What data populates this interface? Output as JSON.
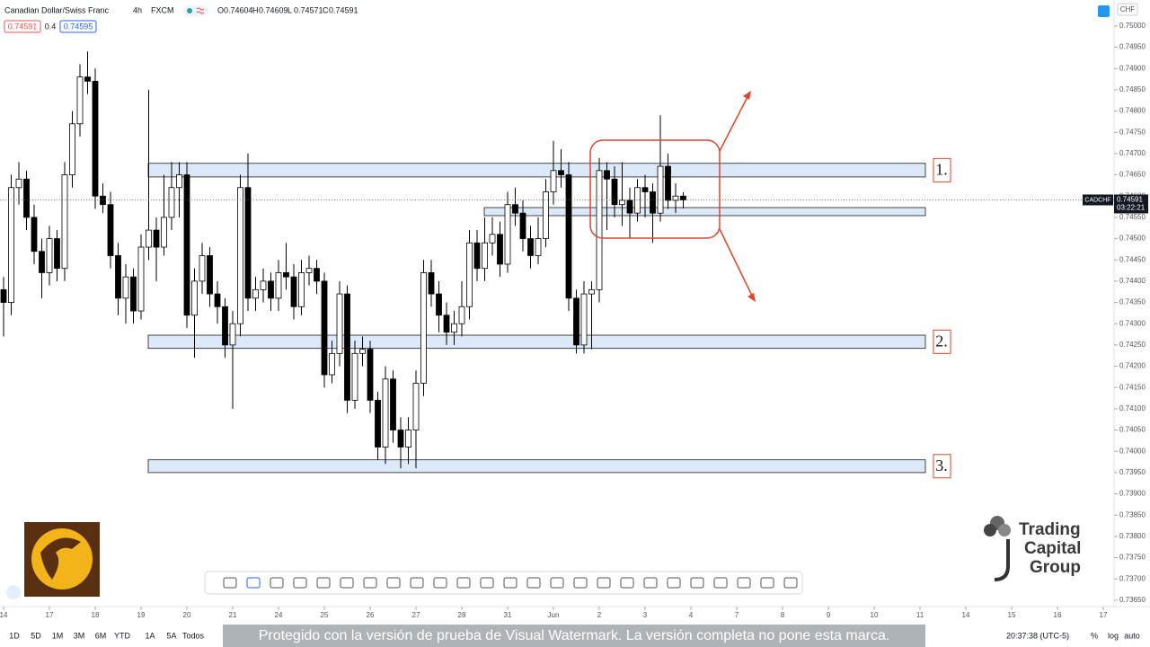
{
  "chart_data": {
    "type": "candlestick",
    "header": {
      "symbol": "Canadian Dollar/Swiss Franc",
      "interval": "4h",
      "source": "FXCM",
      "ohlc_legend": [
        {
          "label": "O",
          "value": 0.74604
        },
        {
          "label": "H",
          "value": 0.74609
        },
        {
          "label": "L",
          "value": 0.74571
        },
        {
          "label": "C",
          "value": 0.74591
        }
      ],
      "bid": 0.74591,
      "spread": 0.4,
      "ask": 0.74595
    },
    "currency": "CHF",
    "last_label": "CADCHF",
    "last_price": 0.74591,
    "countdown": "03:22:21",
    "xlim": [
      -0.47,
      145.41
    ],
    "xticks": [
      {
        "value": 0,
        "label": "14"
      },
      {
        "value": 6,
        "label": "17"
      },
      {
        "value": 12,
        "label": "18"
      },
      {
        "value": 18,
        "label": "19"
      },
      {
        "value": 24,
        "label": "20"
      },
      {
        "value": 30,
        "label": "21"
      },
      {
        "value": 36,
        "label": "24"
      },
      {
        "value": 42,
        "label": "25"
      },
      {
        "value": 48,
        "label": "26"
      },
      {
        "value": 54,
        "label": "27"
      },
      {
        "value": 60,
        "label": "28"
      },
      {
        "value": 66,
        "label": "31"
      },
      {
        "value": 72,
        "label": "Jun"
      },
      {
        "value": 78,
        "label": "2"
      },
      {
        "value": 84,
        "label": "3"
      },
      {
        "value": 90,
        "label": "4"
      },
      {
        "value": 96,
        "label": "7"
      },
      {
        "value": 102,
        "label": "8"
      },
      {
        "value": 108,
        "label": "9"
      },
      {
        "value": 114,
        "label": "10"
      },
      {
        "value": 120,
        "label": "11"
      },
      {
        "value": 126,
        "label": "14"
      },
      {
        "value": 132,
        "label": "15"
      },
      {
        "value": 138,
        "label": "16"
      },
      {
        "value": 144,
        "label": "17"
      }
    ],
    "ylim": [
      0.73635,
      0.75061
    ],
    "yticks": [
      {
        "value": 0.7365,
        "label": "0.73650"
      },
      {
        "value": 0.737,
        "label": "0.73700"
      },
      {
        "value": 0.7375,
        "label": "0.73750"
      },
      {
        "value": 0.738,
        "label": "0.73800"
      },
      {
        "value": 0.7385,
        "label": "0.73850"
      },
      {
        "value": 0.739,
        "label": "0.73900"
      },
      {
        "value": 0.7395,
        "label": "0.73950"
      },
      {
        "value": 0.74,
        "label": "0.74000"
      },
      {
        "value": 0.7405,
        "label": "0.74050"
      },
      {
        "value": 0.741,
        "label": "0.74100"
      },
      {
        "value": 0.7415,
        "label": "0.74150"
      },
      {
        "value": 0.742,
        "label": "0.74200"
      },
      {
        "value": 0.7425,
        "label": "0.74250"
      },
      {
        "value": 0.743,
        "label": "0.74300"
      },
      {
        "value": 0.7435,
        "label": "0.74350"
      },
      {
        "value": 0.744,
        "label": "0.74400"
      },
      {
        "value": 0.7445,
        "label": "0.74450"
      },
      {
        "value": 0.745,
        "label": "0.74500"
      },
      {
        "value": 0.7455,
        "label": "0.74550"
      },
      {
        "value": 0.746,
        "label": "0.74600"
      },
      {
        "value": 0.7465,
        "label": "0.74650"
      },
      {
        "value": 0.747,
        "label": "0.74700"
      },
      {
        "value": 0.7475,
        "label": "0.74750"
      },
      {
        "value": 0.748,
        "label": "0.74800"
      },
      {
        "value": 0.7485,
        "label": "0.74850"
      },
      {
        "value": 0.749,
        "label": "0.74900"
      },
      {
        "value": 0.7495,
        "label": "0.74950"
      },
      {
        "value": 0.75,
        "label": "0.75000"
      }
    ],
    "up_color": "#ffffff",
    "down_color": "#000000",
    "ohlc": [
      [
        0.7438,
        0.7441,
        0.7427,
        0.7435
      ],
      [
        0.7435,
        0.7465,
        0.7432,
        0.7462
      ],
      [
        0.7462,
        0.7468,
        0.7458,
        0.7464
      ],
      [
        0.7464,
        0.7466,
        0.7452,
        0.7455
      ],
      [
        0.7455,
        0.7458,
        0.7444,
        0.7447
      ],
      [
        0.7447,
        0.745,
        0.7436,
        0.7442
      ],
      [
        0.7442,
        0.7453,
        0.7439,
        0.745
      ],
      [
        0.745,
        0.7452,
        0.744,
        0.7443
      ],
      [
        0.7443,
        0.7468,
        0.744,
        0.7465
      ],
      [
        0.7465,
        0.748,
        0.7462,
        0.7477
      ],
      [
        0.7477,
        0.7491,
        0.7474,
        0.7488
      ],
      [
        0.7488,
        0.7494,
        0.7484,
        0.7487
      ],
      [
        0.7487,
        0.749,
        0.7457,
        0.746
      ],
      [
        0.746,
        0.7463,
        0.7456,
        0.7458
      ],
      [
        0.7458,
        0.7461,
        0.7443,
        0.7446
      ],
      [
        0.7446,
        0.7449,
        0.7432,
        0.7436
      ],
      [
        0.7436,
        0.7444,
        0.743,
        0.7441
      ],
      [
        0.7441,
        0.7443,
        0.743,
        0.7433
      ],
      [
        0.7433,
        0.7451,
        0.7431,
        0.7448
      ],
      [
        0.7448,
        0.7485,
        0.7445,
        0.7452
      ],
      [
        0.7452,
        0.7455,
        0.744,
        0.7448
      ],
      [
        0.7448,
        0.7465,
        0.7446,
        0.7455
      ],
      [
        0.7455,
        0.7468,
        0.7452,
        0.7462
      ],
      [
        0.7462,
        0.7468,
        0.7455,
        0.7465
      ],
      [
        0.7465,
        0.7468,
        0.7429,
        0.7432
      ],
      [
        0.7432,
        0.7443,
        0.7422,
        0.744
      ],
      [
        0.744,
        0.7449,
        0.7437,
        0.7446
      ],
      [
        0.7446,
        0.7448,
        0.7434,
        0.7437
      ],
      [
        0.7437,
        0.744,
        0.743,
        0.7434
      ],
      [
        0.7434,
        0.7436,
        0.7422,
        0.7425
      ],
      [
        0.7425,
        0.7433,
        0.741,
        0.743
      ],
      [
        0.743,
        0.7465,
        0.7427,
        0.7462
      ],
      [
        0.7462,
        0.747,
        0.7433,
        0.7436
      ],
      [
        0.7436,
        0.7441,
        0.7433,
        0.7438
      ],
      [
        0.7438,
        0.7443,
        0.7435,
        0.744
      ],
      [
        0.744,
        0.7442,
        0.7433,
        0.7436
      ],
      [
        0.7436,
        0.7445,
        0.7433,
        0.7442
      ],
      [
        0.7442,
        0.7449,
        0.7438,
        0.7441
      ],
      [
        0.7441,
        0.7444,
        0.7431,
        0.7434
      ],
      [
        0.7434,
        0.7445,
        0.7432,
        0.7442
      ],
      [
        0.7442,
        0.7446,
        0.7439,
        0.7443
      ],
      [
        0.7443,
        0.7445,
        0.7437,
        0.744
      ],
      [
        0.744,
        0.7442,
        0.7415,
        0.7418
      ],
      [
        0.7418,
        0.7426,
        0.7416,
        0.7423
      ],
      [
        0.7423,
        0.744,
        0.742,
        0.7437
      ],
      [
        0.7437,
        0.7439,
        0.7409,
        0.7412
      ],
      [
        0.7412,
        0.7426,
        0.741,
        0.7423
      ],
      [
        0.7423,
        0.7427,
        0.742,
        0.7424
      ],
      [
        0.7424,
        0.7426,
        0.7409,
        0.7412
      ],
      [
        0.7412,
        0.7414,
        0.7398,
        0.7401
      ],
      [
        0.7401,
        0.742,
        0.7397,
        0.7417
      ],
      [
        0.7417,
        0.7419,
        0.7402,
        0.7405
      ],
      [
        0.7405,
        0.7408,
        0.7396,
        0.7401
      ],
      [
        0.7401,
        0.7408,
        0.7397,
        0.7405
      ],
      [
        0.7405,
        0.7419,
        0.7396,
        0.7416
      ],
      [
        0.7416,
        0.7445,
        0.7413,
        0.7442
      ],
      [
        0.7442,
        0.7445,
        0.7434,
        0.7437
      ],
      [
        0.7437,
        0.744,
        0.7428,
        0.7432
      ],
      [
        0.7432,
        0.7435,
        0.7425,
        0.7428
      ],
      [
        0.7428,
        0.7433,
        0.7425,
        0.743
      ],
      [
        0.743,
        0.744,
        0.7427,
        0.7434
      ],
      [
        0.7434,
        0.7452,
        0.7431,
        0.7449
      ],
      [
        0.7449,
        0.7452,
        0.744,
        0.7443
      ],
      [
        0.7443,
        0.7455,
        0.744,
        0.7449
      ],
      [
        0.7449,
        0.7455,
        0.7446,
        0.7451
      ],
      [
        0.7451,
        0.7454,
        0.7441,
        0.7444
      ],
      [
        0.7444,
        0.7461,
        0.7442,
        0.7458
      ],
      [
        0.7458,
        0.7462,
        0.7453,
        0.7456
      ],
      [
        0.7456,
        0.7459,
        0.7447,
        0.745
      ],
      [
        0.745,
        0.7453,
        0.7443,
        0.7446
      ],
      [
        0.7446,
        0.7455,
        0.7444,
        0.745
      ],
      [
        0.745,
        0.7464,
        0.7448,
        0.7461
      ],
      [
        0.7461,
        0.7473,
        0.7458,
        0.7466
      ],
      [
        0.7466,
        0.7471,
        0.7462,
        0.7465
      ],
      [
        0.7465,
        0.7468,
        0.7433,
        0.7436
      ],
      [
        0.7436,
        0.7438,
        0.7423,
        0.7425
      ],
      [
        0.7425,
        0.744,
        0.7423,
        0.7437
      ],
      [
        0.7437,
        0.744,
        0.7424,
        0.7438
      ],
      [
        0.7438,
        0.7469,
        0.7435,
        0.7466
      ],
      [
        0.7466,
        0.7468,
        0.7452,
        0.7464
      ],
      [
        0.7464,
        0.7467,
        0.7455,
        0.7458
      ],
      [
        0.7458,
        0.7468,
        0.7453,
        0.7459
      ],
      [
        0.7459,
        0.7462,
        0.745,
        0.7456
      ],
      [
        0.7456,
        0.7464,
        0.7454,
        0.7462
      ],
      [
        0.7462,
        0.7465,
        0.7455,
        0.7461
      ],
      [
        0.7461,
        0.7463,
        0.7449,
        0.7456
      ],
      [
        0.7456,
        0.7479,
        0.7454,
        0.7467
      ],
      [
        0.7467,
        0.747,
        0.7457,
        0.7459
      ],
      [
        0.7459,
        0.7463,
        0.7456,
        0.746
      ],
      [
        0.746,
        0.74609,
        0.74571,
        0.74591
      ]
    ],
    "zones": [
      {
        "low": 0.74645,
        "high": 0.74677,
        "label": "1."
      },
      {
        "low": 0.74554,
        "high": 0.74573
      },
      {
        "low": 0.74242,
        "high": 0.74273,
        "label": "2."
      },
      {
        "low": 0.7395,
        "high": 0.7398,
        "label": "3."
      }
    ]
  },
  "ui": {
    "ranges": [
      "1D",
      "5D",
      "1M",
      "3M",
      "6M",
      "YTD",
      "1A",
      "5A",
      "Todos"
    ],
    "watermark": "Protegido con la versión de prueba de Visual Watermark. La versión completa no pone esta marca.",
    "clock": "20:37:38 (UTC-5)",
    "scale_options": [
      "%",
      "log",
      "auto"
    ],
    "brand": [
      "Trading",
      "Capital",
      "Group"
    ]
  }
}
